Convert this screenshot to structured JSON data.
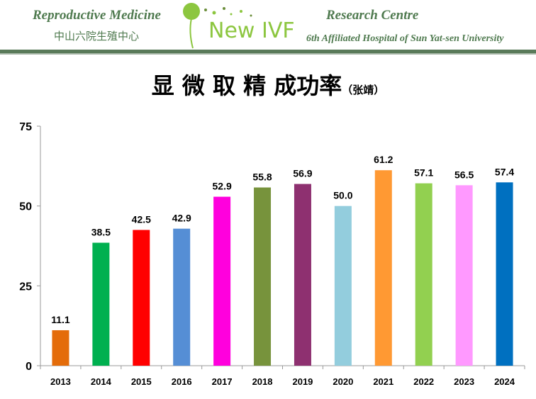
{
  "header": {
    "left_title": "Reproductive Medicine",
    "left_subtitle": "中山六院生殖中心",
    "logo_text": "New IVF",
    "right_title": "Research Centre",
    "right_subtitle": "6th Affiliated Hospital of Sun Yat-sen University"
  },
  "chart_data": {
    "type": "bar",
    "title": "显 微 取 精 成功率",
    "title_note": "（张靖）",
    "categories": [
      "2013",
      "2014",
      "2015",
      "2016",
      "2017",
      "2018",
      "2019",
      "2020",
      "2021",
      "2022",
      "2023",
      "2024"
    ],
    "values": [
      11.1,
      38.5,
      42.5,
      42.9,
      52.9,
      55.8,
      56.9,
      50.0,
      61.2,
      57.1,
      56.5,
      57.4
    ],
    "labels": [
      "11.1",
      "38.5",
      "42.5",
      "42.9",
      "52.9",
      "55.8",
      "56.9",
      "50.0",
      "61.2",
      "57.1",
      "56.5",
      "57.4"
    ],
    "colors": [
      "#E46C0A",
      "#00B050",
      "#FF0000",
      "#558ED5",
      "#FF00DD",
      "#77933C",
      "#8E3070",
      "#93CDDD",
      "#FF9933",
      "#92D050",
      "#FF99FF",
      "#0070C0"
    ],
    "yticks": [
      "0",
      "25",
      "50",
      "75"
    ],
    "ylim": [
      0,
      75
    ],
    "grid": false
  }
}
